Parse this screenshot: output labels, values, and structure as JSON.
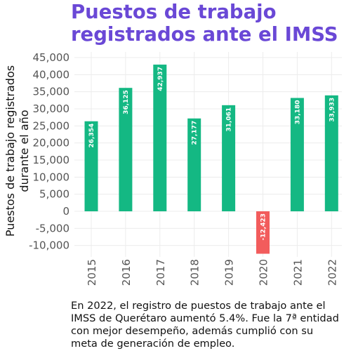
{
  "chart_data": {
    "type": "bar",
    "title": "Puestos de trabajo registrados ante el IMSS",
    "ylabel": "Puestos de trabajo registrados durante el año",
    "ylabel_lines": [
      "Puestos de trabajo registrados",
      "durante el año"
    ],
    "xlabel": "",
    "categories": [
      "2015",
      "2016",
      "2017",
      "2018",
      "2019",
      "2020",
      "2021",
      "2022"
    ],
    "values": [
      26354,
      36125,
      42937,
      27177,
      31061,
      -12423,
      33180,
      33933
    ],
    "data_labels": [
      "26,354",
      "36,125",
      "42,937",
      "27,177",
      "31,061",
      "-12,423",
      "33,180",
      "33,933"
    ],
    "yticks": [
      45000,
      40000,
      35000,
      30000,
      25000,
      20000,
      15000,
      10000,
      5000,
      0,
      -5000,
      -10000
    ],
    "ytick_labels": [
      "45,000",
      "40,000",
      "35,000",
      "30,000",
      "25,000",
      "20,000",
      "15,000",
      "10,000",
      "5,000",
      "0",
      "-5,000",
      "-10,000"
    ],
    "ylim": [
      -12500,
      45000
    ],
    "grid": true,
    "colors": {
      "positive": "#14b883",
      "negative": "#f25c5c",
      "title": "#6a48d6"
    }
  },
  "caption": "En 2022, el registro de puestos de trabajo ante el IMSS de Querétaro aumentó 5.4%. Fue la 7ª entidad con mejor desempeño, además cumplió con su meta de generación de empleo."
}
